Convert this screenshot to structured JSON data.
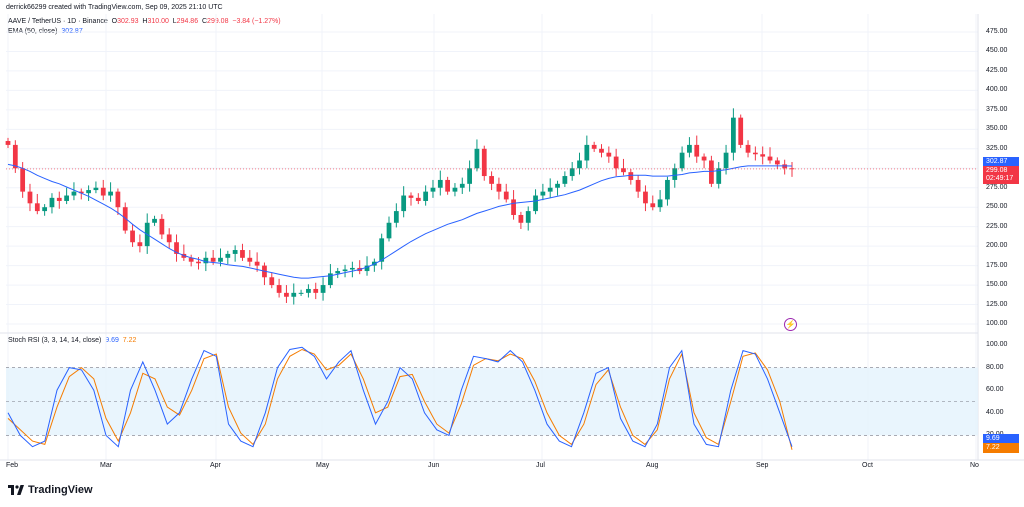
{
  "header": {
    "caption": "derrick66299 created with TradingView.com, Sep 09, 2025 21:10 UTC"
  },
  "legend": {
    "symbol": "AAVE / TetherUS · 1D · Binance",
    "open_label": "O",
    "open": "302.93",
    "high_label": "H",
    "high": "310.00",
    "low_label": "L",
    "low": "294.86",
    "close_label": "C",
    "close": "299.08",
    "change": "−3.84 (−1.27%)",
    "ema_label": "EMA (50, close)",
    "ema_value": "302.87"
  },
  "rsi_legend": {
    "label": "Stoch RSI (3, 3, 14, 14, close)",
    "k": "9.69",
    "d": "7.22"
  },
  "price_axis": [
    "475.00",
    "450.00",
    "425.00",
    "400.00",
    "375.00",
    "350.00",
    "325.00",
    "300.00",
    "275.00",
    "250.00",
    "225.00",
    "200.00",
    "175.00",
    "150.00",
    "125.00",
    "100.00"
  ],
  "rsi_axis": [
    "100.00",
    "80.00",
    "60.00",
    "40.00",
    "20.00"
  ],
  "time_axis": [
    "Feb",
    "Mar",
    "Apr",
    "May",
    "Jun",
    "Jul",
    "Aug",
    "Sep",
    "Oct",
    "No"
  ],
  "price_tags": {
    "ema": "302.87",
    "close": "299.08",
    "countdown": "02:49:17",
    "rsi_k": "9.69",
    "rsi_d": "7.22"
  },
  "colors": {
    "up": "#089981",
    "down": "#f23645",
    "ema": "#2962ff",
    "rsi_k": "#2962ff",
    "rsi_d": "#f57c00",
    "rsi_band": "#e3f2fd"
  },
  "icons": {
    "flash": "lightning-icon",
    "logo": "tradingview-logo"
  },
  "footer": {
    "brand": "TradingView"
  },
  "chart_data": {
    "type": "candlestick",
    "ema_period": 50,
    "ylim": [
      100,
      475
    ],
    "closes": [
      330,
      300,
      270,
      255,
      245,
      250,
      262,
      258,
      265,
      270,
      268,
      272,
      275,
      265,
      270,
      250,
      220,
      205,
      200,
      230,
      235,
      215,
      205,
      190,
      185,
      180,
      178,
      185,
      180,
      185,
      190,
      195,
      185,
      180,
      175,
      160,
      150,
      140,
      135,
      140,
      140,
      145,
      140,
      150,
      165,
      168,
      170,
      172,
      168,
      175,
      180,
      210,
      230,
      245,
      265,
      262,
      258,
      270,
      275,
      285,
      270,
      275,
      280,
      300,
      325,
      290,
      280,
      270,
      260,
      240,
      230,
      245,
      265,
      270,
      275,
      280,
      290,
      300,
      310,
      330,
      325,
      320,
      315,
      300,
      295,
      285,
      270,
      255,
      250,
      260,
      285,
      300,
      320,
      330,
      315,
      310,
      280,
      300,
      320,
      365,
      330,
      320,
      318,
      315,
      310,
      305,
      300,
      299
    ],
    "ema": [
      305,
      303,
      300,
      296,
      291,
      287,
      283,
      280,
      276,
      272,
      268,
      264,
      259,
      254,
      249,
      243,
      236,
      228,
      221,
      215,
      209,
      203,
      197,
      192,
      188,
      185,
      183,
      180,
      179,
      178,
      176,
      175,
      174,
      172,
      170,
      168,
      166,
      164,
      162,
      160,
      159,
      159,
      160,
      161,
      162,
      164,
      166,
      168,
      170,
      173,
      177,
      182,
      188,
      194,
      200,
      206,
      211,
      216,
      220,
      224,
      228,
      231,
      234,
      238,
      242,
      245,
      248,
      251,
      253,
      255,
      256,
      257,
      258,
      260,
      262,
      264,
      266,
      269,
      272,
      276,
      280,
      284,
      287,
      289,
      290,
      291,
      291,
      291,
      290,
      290,
      290,
      291,
      292,
      294,
      295,
      296,
      296,
      297,
      298,
      300,
      302,
      303,
      303,
      303,
      303,
      303,
      303,
      302.87
    ],
    "stoch_k": [
      40,
      20,
      10,
      15,
      60,
      80,
      78,
      60,
      20,
      10,
      60,
      85,
      60,
      30,
      40,
      70,
      95,
      90,
      30,
      15,
      10,
      40,
      80,
      96,
      98,
      90,
      70,
      85,
      95,
      60,
      30,
      50,
      80,
      70,
      40,
      25,
      20,
      60,
      90,
      88,
      85,
      95,
      85,
      60,
      30,
      15,
      10,
      40,
      75,
      80,
      35,
      15,
      10,
      30,
      80,
      95,
      30,
      12,
      10,
      60,
      95,
      92,
      70,
      40,
      10
    ],
    "stoch_d": [
      35,
      25,
      15,
      12,
      45,
      72,
      80,
      70,
      35,
      15,
      40,
      75,
      70,
      45,
      38,
      60,
      88,
      92,
      45,
      22,
      12,
      30,
      70,
      90,
      96,
      92,
      78,
      82,
      92,
      70,
      40,
      45,
      72,
      74,
      50,
      30,
      22,
      48,
      82,
      88,
      86,
      92,
      88,
      68,
      40,
      20,
      12,
      30,
      65,
      78,
      45,
      20,
      12,
      25,
      70,
      92,
      40,
      18,
      12,
      50,
      90,
      93,
      78,
      50,
      7.22
    ],
    "ranges": {
      "price": [
        100,
        475
      ],
      "stoch": [
        0,
        100
      ]
    }
  }
}
